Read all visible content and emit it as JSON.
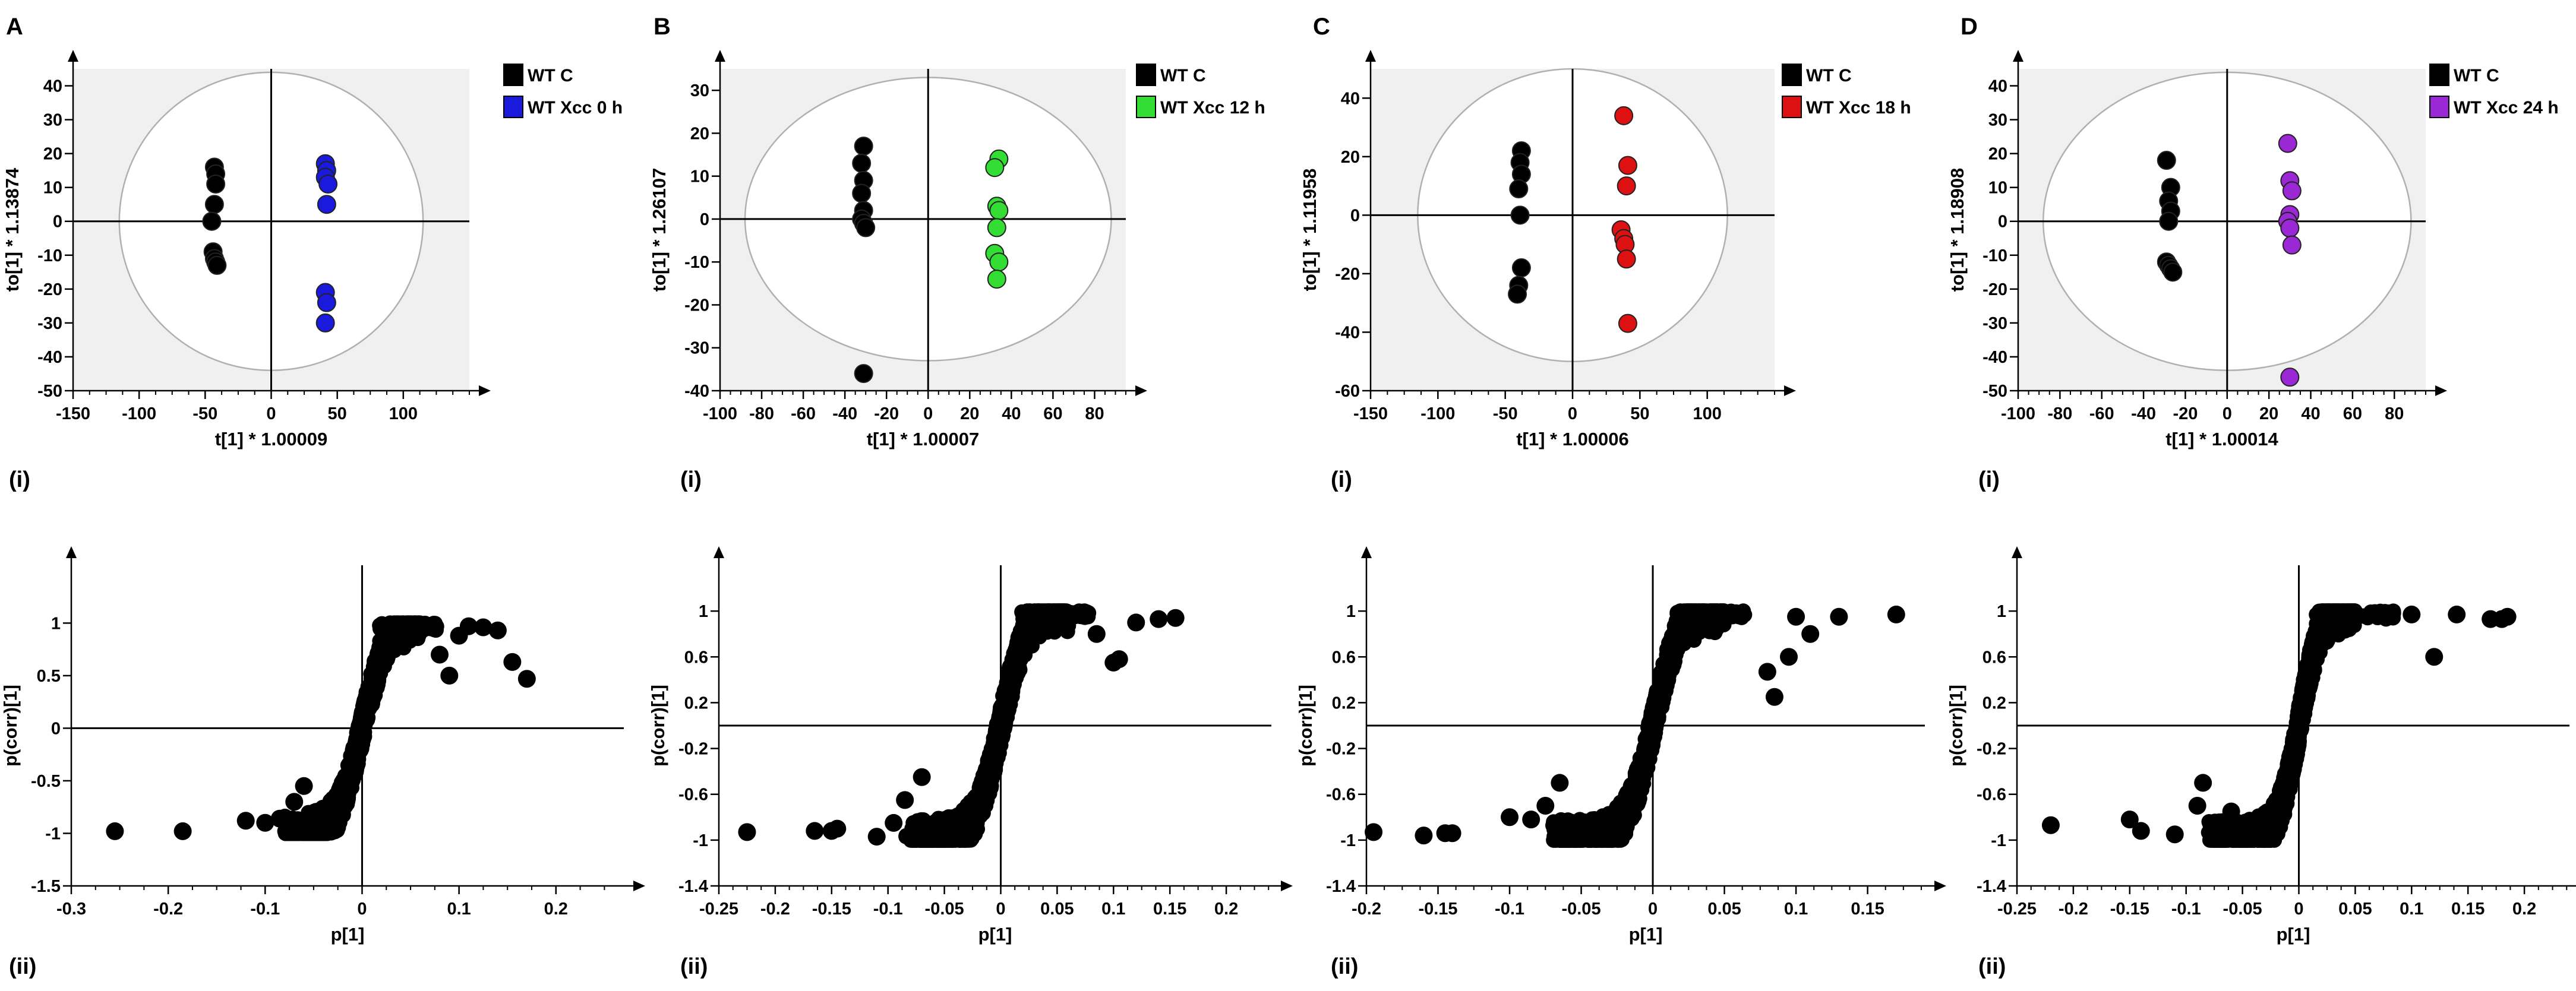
{
  "colors": {
    "black": "#000000",
    "plot_bg": "#f0f0f0",
    "ellipse_fill": "#ffffff",
    "ellipse_stroke": "#b0b0b0",
    "series_0h": "#1a1adc",
    "series_12h": "#33dd33",
    "series_18h": "#dd1111",
    "series_24h": "#9a28d4"
  },
  "panels": [
    {
      "letter": "A"
    },
    {
      "letter": "B"
    },
    {
      "letter": "C"
    },
    {
      "letter": "D"
    }
  ],
  "sublabels": {
    "score": "(i)",
    "splot": "(ii)"
  },
  "chart_data": [
    {
      "panel": "A",
      "part": "(i)",
      "type": "scatter",
      "xlabel": "t[1] * 1.00009",
      "ylabel": "to[1] * 1.13874",
      "xlim": [
        -150,
        150
      ],
      "ylim": [
        -50,
        45
      ],
      "xticks": [
        -150,
        -100,
        -50,
        0,
        50,
        100
      ],
      "xtick_labels": [
        "-150",
        "-100",
        "-50",
        "0",
        "50",
        "100"
      ],
      "yticks": [
        -50,
        -40,
        -30,
        -20,
        -10,
        0,
        10,
        20,
        30,
        40
      ],
      "ytick_labels": [
        "-50",
        "-40",
        "-30",
        "-20",
        "-10",
        "0",
        "10",
        "20",
        "30",
        "40"
      ],
      "ellipse": {
        "rx": 115,
        "ry": 44
      },
      "series": [
        {
          "name": "WT C",
          "color": "#000000",
          "x": [
            -43,
            -42,
            -42,
            -43,
            -45,
            -44,
            -43,
            -42,
            -41
          ],
          "y": [
            16,
            14,
            11,
            5,
            0,
            -9,
            -11,
            -12,
            -13
          ]
        },
        {
          "name": "WT Xcc 0 h",
          "color": "#1a1adc",
          "x": [
            41,
            42,
            41,
            43,
            42,
            41,
            42,
            41
          ],
          "y": [
            17,
            15,
            13,
            11,
            5,
            -21,
            -24,
            -30
          ]
        }
      ]
    },
    {
      "panel": "B",
      "part": "(i)",
      "type": "scatter",
      "xlabel": "t[1] * 1.00007",
      "ylabel": "to[1] * 1.26107",
      "xlim": [
        -100,
        95
      ],
      "ylim": [
        -40,
        35
      ],
      "xticks": [
        -100,
        -80,
        -60,
        -40,
        -20,
        0,
        20,
        40,
        60,
        80
      ],
      "xtick_labels": [
        "-100",
        "-80",
        "-60",
        "-40",
        "-20",
        "0",
        "20",
        "40",
        "60",
        "80"
      ],
      "yticks": [
        -40,
        -30,
        -20,
        -10,
        0,
        10,
        20,
        30
      ],
      "ytick_labels": [
        "-40",
        "-30",
        "-20",
        "-10",
        "0",
        "10",
        "20",
        "30"
      ],
      "ellipse": {
        "rx": 88,
        "ry": 33
      },
      "series": [
        {
          "name": "WT C",
          "color": "#000000",
          "x": [
            -31,
            -32,
            -31,
            -32,
            -31,
            -32,
            -31,
            -30,
            -31
          ],
          "y": [
            17,
            13,
            9,
            6,
            2,
            0,
            -1,
            -2,
            -36
          ]
        },
        {
          "name": "WT Xcc 12 h",
          "color": "#33dd33",
          "x": [
            34,
            32,
            33,
            34,
            33,
            32,
            34,
            33
          ],
          "y": [
            14,
            12,
            3,
            2,
            -2,
            -8,
            -10,
            -14
          ]
        }
      ]
    },
    {
      "panel": "C",
      "part": "(i)",
      "type": "scatter",
      "xlabel": "t[1] * 1.00006",
      "ylabel": "to[1] * 1.11958",
      "xlim": [
        -150,
        150
      ],
      "ylim": [
        -60,
        50
      ],
      "xticks": [
        -150,
        -100,
        -50,
        0,
        50,
        100
      ],
      "xtick_labels": [
        "-150",
        "-100",
        "-50",
        "0",
        "50",
        "100"
      ],
      "yticks": [
        -60,
        -40,
        -20,
        0,
        20,
        40
      ],
      "ytick_labels": [
        "-60",
        "-40",
        "-20",
        "0",
        "20",
        "40"
      ],
      "ellipse": {
        "rx": 115,
        "ry": 50
      },
      "series": [
        {
          "name": "WT C",
          "color": "#000000",
          "x": [
            -38,
            -39,
            -38,
            -40,
            -39,
            -38,
            -40,
            -41
          ],
          "y": [
            22,
            18,
            14,
            9,
            0,
            -18,
            -24,
            -27
          ]
        },
        {
          "name": "WT Xcc 18 h",
          "color": "#dd1111",
          "x": [
            38,
            41,
            40,
            36,
            38,
            39,
            40,
            41
          ],
          "y": [
            34,
            17,
            10,
            -5,
            -8,
            -10,
            -15,
            -37
          ]
        }
      ]
    },
    {
      "panel": "D",
      "part": "(i)",
      "type": "scatter",
      "xlabel": "t[1] * 1.00014",
      "ylabel": "to[1] * 1.18908",
      "xlim": [
        -100,
        95
      ],
      "ylim": [
        -50,
        45
      ],
      "xticks": [
        -100,
        -80,
        -60,
        -40,
        -20,
        0,
        20,
        40,
        60,
        80
      ],
      "xtick_labels": [
        "-100",
        "-80",
        "-60",
        "-40",
        "-20",
        "0",
        "20",
        "40",
        "60",
        "80"
      ],
      "yticks": [
        -50,
        -40,
        -30,
        -20,
        -10,
        0,
        10,
        20,
        30,
        40
      ],
      "ytick_labels": [
        "-50",
        "-40",
        "-30",
        "-20",
        "-10",
        "0",
        "10",
        "20",
        "30",
        "40"
      ],
      "ellipse": {
        "rx": 88,
        "ry": 44
      },
      "series": [
        {
          "name": "WT C",
          "color": "#000000",
          "x": [
            -29,
            -27,
            -28,
            -27,
            -28,
            -29,
            -28,
            -27,
            -26
          ],
          "y": [
            18,
            10,
            6,
            3,
            0,
            -12,
            -13,
            -14,
            -15
          ]
        },
        {
          "name": "WT Xcc 24 h",
          "color": "#9a28d4",
          "x": [
            29,
            30,
            31,
            30,
            29,
            30,
            31,
            30
          ],
          "y": [
            23,
            12,
            9,
            2,
            0,
            -2,
            -7,
            -46
          ]
        }
      ]
    },
    {
      "panel": "A",
      "part": "(ii)",
      "type": "scatter",
      "xlabel": "p[1]",
      "ylabel": "p(corr)[1]",
      "xlim": [
        -0.3,
        0.27
      ],
      "ylim": [
        -1.5,
        1.55
      ],
      "xticks": [
        -0.3,
        -0.2,
        -0.1,
        0,
        0.1,
        0.2
      ],
      "xtick_labels": [
        "-0.3",
        "-0.2",
        "-0.1",
        "0",
        "0.1",
        "0.2"
      ],
      "yticks": [
        -1.5,
        -1,
        -0.5,
        0,
        0.5,
        1
      ],
      "ytick_labels": [
        "-1.5",
        "-1",
        "-0.5",
        "0",
        "0.5",
        "1"
      ],
      "left_width": 0.08,
      "right_width": 0.06,
      "curve_k": 40,
      "pos_tail": 0.06,
      "neg_tail": 0.04,
      "series": [
        {
          "name": "",
          "color": "#000000",
          "x": [
            -0.255,
            -0.185,
            -0.12,
            -0.1,
            -0.085,
            -0.07,
            -0.06,
            0.08,
            0.09,
            0.11,
            0.14,
            0.155,
            0.17,
            0.1,
            0.125
          ],
          "y": [
            -0.98,
            -0.98,
            -0.88,
            -0.9,
            -0.86,
            -0.7,
            -0.55,
            0.7,
            0.5,
            0.97,
            0.93,
            0.63,
            0.47,
            0.88,
            0.96
          ]
        }
      ]
    },
    {
      "panel": "B",
      "part": "(ii)",
      "type": "scatter",
      "xlabel": "p[1]",
      "ylabel": "p(corr)[1]",
      "xlim": [
        -0.25,
        0.24
      ],
      "ylim": [
        -1.4,
        1.4
      ],
      "xticks": [
        -0.25,
        -0.2,
        -0.15,
        -0.1,
        -0.05,
        0,
        0.05,
        0.1,
        0.15,
        0.2
      ],
      "xtick_labels": [
        "-0.25",
        "-0.2",
        "-0.15",
        "-0.1",
        "-0.05",
        "0",
        "0.05",
        "0.1",
        "0.15",
        "0.2"
      ],
      "yticks": [
        -1.4,
        -1,
        -0.6,
        -0.2,
        0.2,
        0.6,
        1
      ],
      "ytick_labels": [
        "-1.4",
        "-1",
        "-0.6",
        "-0.2",
        "0.2",
        "0.6",
        "1"
      ],
      "left_width": 0.08,
      "right_width": 0.06,
      "curve_k": 45,
      "pos_tail": 0.06,
      "neg_tail": 0.06,
      "series": [
        {
          "name": "",
          "color": "#000000",
          "x": [
            -0.225,
            -0.165,
            -0.15,
            -0.145,
            -0.11,
            -0.095,
            -0.085,
            -0.07,
            0.1,
            0.105,
            0.14,
            0.155,
            0.12,
            0.085
          ],
          "y": [
            -0.93,
            -0.92,
            -0.92,
            -0.9,
            -0.97,
            -0.85,
            -0.65,
            -0.45,
            0.55,
            0.58,
            0.93,
            0.94,
            0.9,
            0.8
          ]
        }
      ]
    },
    {
      "panel": "C",
      "part": "(ii)",
      "type": "scatter",
      "xlabel": "p[1]",
      "ylabel": "p(corr)[1]",
      "xlim": [
        -0.2,
        0.19
      ],
      "ylim": [
        -1.4,
        1.4
      ],
      "xticks": [
        -0.2,
        -0.15,
        -0.1,
        -0.05,
        0,
        0.05,
        0.1,
        0.15
      ],
      "xtick_labels": [
        "-0.2",
        "-0.15",
        "-0.1",
        "-0.05",
        "0",
        "0.05",
        "0.1",
        "0.15"
      ],
      "yticks": [
        -1.4,
        -1,
        -0.6,
        -0.2,
        0.2,
        0.6,
        1
      ],
      "ytick_labels": [
        "-1.4",
        "-1",
        "-0.6",
        "-0.2",
        "0.2",
        "0.6",
        "1"
      ],
      "left_width": 0.07,
      "right_width": 0.05,
      "curve_k": 55,
      "pos_tail": 0.05,
      "neg_tail": 0.04,
      "series": [
        {
          "name": "",
          "color": "#000000",
          "x": [
            -0.195,
            -0.16,
            -0.145,
            -0.14,
            -0.1,
            -0.085,
            -0.075,
            -0.065,
            0.08,
            0.085,
            0.1,
            0.13,
            0.17,
            0.11,
            0.095
          ],
          "y": [
            -0.93,
            -0.96,
            -0.94,
            -0.94,
            -0.8,
            -0.82,
            -0.7,
            -0.5,
            0.47,
            0.25,
            0.95,
            0.95,
            0.97,
            0.8,
            0.6
          ]
        }
      ]
    },
    {
      "panel": "D",
      "part": "(ii)",
      "type": "scatter",
      "xlabel": "p[1]",
      "ylabel": "p(corr)[1]",
      "xlim": [
        -0.25,
        0.24
      ],
      "ylim": [
        -1.4,
        1.4
      ],
      "xticks": [
        -0.25,
        -0.2,
        -0.15,
        -0.1,
        -0.05,
        0,
        0.05,
        0.1,
        0.15,
        0.2
      ],
      "xtick_labels": [
        "-0.25",
        "-0.2",
        "-0.15",
        "-0.1",
        "-0.05",
        "0",
        "0.05",
        "0.1",
        "0.15",
        "0.2"
      ],
      "yticks": [
        -1.4,
        -1,
        -0.6,
        -0.2,
        0.2,
        0.6,
        1
      ],
      "ytick_labels": [
        "-1.4",
        "-1",
        "-0.6",
        "-0.2",
        "0.2",
        "0.6",
        "1"
      ],
      "left_width": 0.08,
      "right_width": 0.05,
      "curve_k": 55,
      "pos_tail": 0.07,
      "neg_tail": 0.04,
      "series": [
        {
          "name": "",
          "color": "#000000",
          "x": [
            -0.22,
            -0.15,
            -0.14,
            -0.11,
            -0.09,
            -0.085,
            -0.075,
            -0.06,
            0.12,
            0.17,
            0.185,
            0.18,
            0.14,
            0.1
          ],
          "y": [
            -0.87,
            -0.82,
            -0.92,
            -0.95,
            -0.7,
            -0.5,
            -0.9,
            -0.75,
            0.6,
            0.93,
            0.95,
            0.93,
            0.97,
            0.97
          ]
        }
      ]
    }
  ]
}
